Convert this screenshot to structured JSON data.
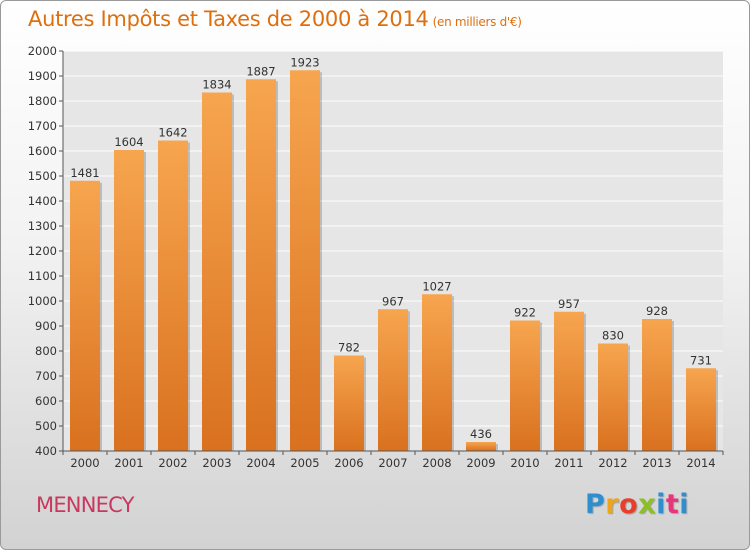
{
  "chart_data": {
    "type": "bar",
    "title": "Autres Impôts et Taxes de 2000 à 2014",
    "unit": "(en milliers d'€)",
    "categories": [
      "2000",
      "2001",
      "2002",
      "2003",
      "2004",
      "2005",
      "2006",
      "2007",
      "2008",
      "2009",
      "2010",
      "2011",
      "2012",
      "2013",
      "2014"
    ],
    "values": [
      1481,
      1604,
      1642,
      1834,
      1887,
      1923,
      782,
      967,
      1027,
      436,
      922,
      957,
      830,
      928,
      731
    ],
    "ylim": [
      400,
      2000
    ],
    "yticks": [
      400,
      500,
      600,
      700,
      800,
      900,
      1000,
      1100,
      1200,
      1300,
      1400,
      1500,
      1600,
      1700,
      1800,
      1900,
      2000
    ],
    "grid": true,
    "bar_color_top": "#f7a54f",
    "bar_color_bottom": "#d9711f"
  },
  "footer": {
    "city": "MENNECY",
    "brand": [
      "P",
      "r",
      "o",
      "x",
      "i",
      "t",
      "i"
    ]
  }
}
